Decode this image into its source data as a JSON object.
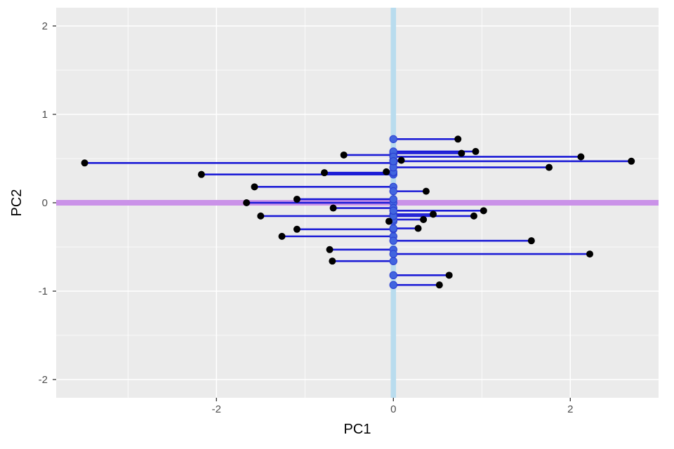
{
  "chart_data": {
    "type": "scatter",
    "title": "",
    "xlabel": "PC1",
    "ylabel": "PC2",
    "xlim": [
      -3.81,
      3.0
    ],
    "ylim": [
      -2.21,
      2.21
    ],
    "x_ticks": [
      -2,
      0,
      2
    ],
    "x_tick_labels": [
      "-2",
      "0",
      "2"
    ],
    "x_minor_ticks": [
      -3,
      -1,
      1,
      3
    ],
    "y_ticks": [
      2,
      1,
      0,
      -1,
      -2
    ],
    "y_tick_labels": [
      "2",
      "1",
      "0",
      "-1",
      "-2"
    ],
    "y_minor_ticks": [
      1.5,
      0.5,
      -0.5,
      -1.5
    ],
    "grid": true,
    "legend": "none",
    "annotations": {
      "vline_x": 0,
      "hline_y": 0
    },
    "series": [
      {
        "name": "observations",
        "marker": "black-dot",
        "points": [
          [
            -3.49,
            0.45
          ],
          [
            -2.17,
            0.32
          ],
          [
            -1.66,
            0.0
          ],
          [
            -1.57,
            0.18
          ],
          [
            -1.5,
            -0.15
          ],
          [
            -1.26,
            -0.38
          ],
          [
            -1.09,
            0.04
          ],
          [
            -1.09,
            -0.3
          ],
          [
            -0.78,
            0.34
          ],
          [
            -0.72,
            -0.53
          ],
          [
            -0.69,
            -0.66
          ],
          [
            -0.68,
            -0.06
          ],
          [
            -0.56,
            0.54
          ],
          [
            -0.08,
            0.35
          ],
          [
            -0.05,
            -0.21
          ],
          [
            0.09,
            0.48
          ],
          [
            0.28,
            -0.29
          ],
          [
            0.34,
            -0.19
          ],
          [
            0.37,
            0.13
          ],
          [
            0.45,
            -0.13
          ],
          [
            0.52,
            -0.93
          ],
          [
            0.63,
            -0.82
          ],
          [
            0.73,
            0.72
          ],
          [
            0.77,
            0.56
          ],
          [
            0.91,
            -0.15
          ],
          [
            0.93,
            0.58
          ],
          [
            1.02,
            -0.09
          ],
          [
            1.56,
            -0.43
          ],
          [
            1.76,
            0.4
          ],
          [
            2.12,
            0.52
          ],
          [
            2.22,
            -0.58
          ],
          [
            2.69,
            0.47
          ]
        ]
      },
      {
        "name": "projections-onto-pc2-axis",
        "marker": "blue-dot",
        "note": "each observation connects by a horizontal blue segment to (0, y)"
      }
    ]
  },
  "colors": {
    "page_bg": "#FFFFFF",
    "panel_bg": "#EBEBEB",
    "grid": "#FFFFFF",
    "vband": "#B9DCEE",
    "hband": "#CA92E8",
    "segment": "#1C1CD6",
    "data_point": "#000000",
    "projection_point": "#4165DF",
    "projection_point_stroke": "#2B3FD0",
    "tick_mark": "#333333",
    "tick_text": "#4D4D4D",
    "axis_title_text": "#000000"
  }
}
